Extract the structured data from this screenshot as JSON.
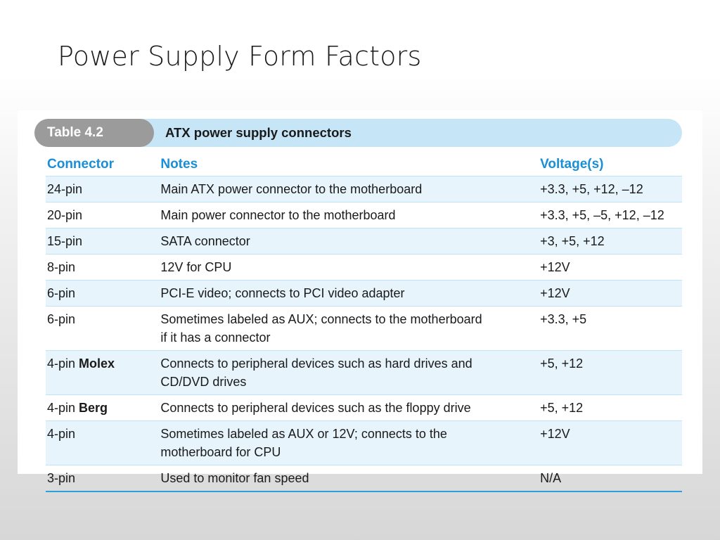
{
  "slide": {
    "title": "Power Supply Form Factors"
  },
  "table": {
    "label": "Table 4.2",
    "caption": "ATX power supply connectors",
    "headers": {
      "connector": "Connector",
      "notes": "Notes",
      "voltage": "Voltage(s)"
    },
    "rows": [
      {
        "connector": "24-pin",
        "connector_bold": "",
        "notes": "Main ATX power connector to the motherboard",
        "notes_line2": "",
        "voltage": "+3.3, +5, +12, –12"
      },
      {
        "connector": "20-pin",
        "connector_bold": "",
        "notes": "Main power connector to the motherboard",
        "notes_line2": "",
        "voltage": "+3.3, +5, –5, +12, –12"
      },
      {
        "connector": "15-pin",
        "connector_bold": "",
        "notes": "SATA connector",
        "notes_line2": "",
        "voltage": "+3, +5, +12"
      },
      {
        "connector": "8-pin",
        "connector_bold": "",
        "notes": "12V for CPU",
        "notes_line2": "",
        "voltage": "+12V"
      },
      {
        "connector": "6-pin",
        "connector_bold": "",
        "notes": "PCI-E video; connects to PCI video adapter",
        "notes_line2": "",
        "voltage": "+12V"
      },
      {
        "connector": "6-pin",
        "connector_bold": "",
        "notes": "Sometimes labeled as AUX; connects to the motherboard",
        "notes_line2": "if it has a connector",
        "voltage": "+3.3, +5"
      },
      {
        "connector": "4-pin ",
        "connector_bold": "Molex",
        "notes": "Connects to peripheral devices such as hard drives and",
        "notes_line2": "CD/DVD drives",
        "voltage": "+5, +12"
      },
      {
        "connector": "4-pin ",
        "connector_bold": "Berg",
        "notes": "Connects to peripheral devices such as the floppy drive",
        "notes_line2": "",
        "voltage": "+5, +12"
      },
      {
        "connector": "4-pin",
        "connector_bold": "",
        "notes": "Sometimes labeled as AUX or 12V; connects to the",
        "notes_line2": "motherboard for CPU",
        "voltage": "+12V"
      },
      {
        "connector": "3-pin",
        "connector_bold": "",
        "notes": "Used to monitor fan speed",
        "notes_line2": "",
        "voltage": "N/A"
      }
    ]
  },
  "colors": {
    "header_text": "#1a8fd6",
    "caption_bar": "#c6e6f7",
    "caption_tag": "#9b9b9b",
    "row_shade": "#e7f4fc",
    "rule": "#2aa0e0"
  }
}
